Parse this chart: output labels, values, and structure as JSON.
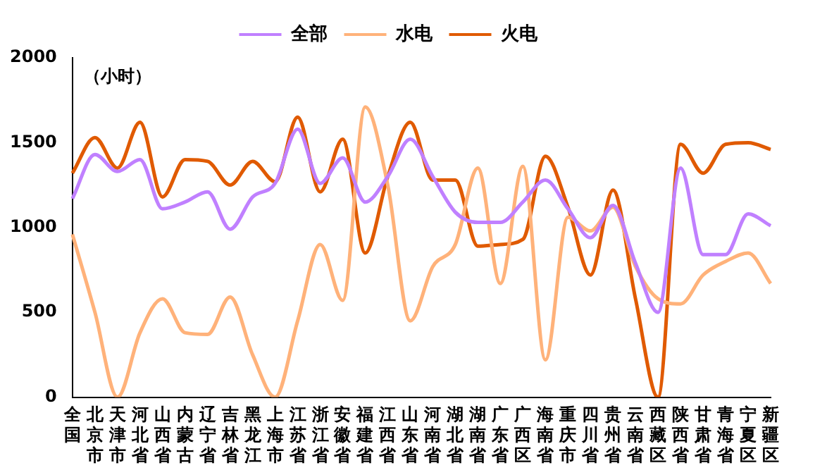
{
  "chart_data": {
    "type": "line",
    "ylabel": "（小时）",
    "categories": [
      "全国",
      "北京市",
      "天津市",
      "河北省",
      "山西省",
      "内蒙古",
      "辽宁省",
      "吉林省",
      "黑龙江",
      "上海市",
      "江苏省",
      "浙江省",
      "安徽省",
      "福建省",
      "江西省",
      "山东省",
      "河南省",
      "湖北省",
      "湖南省",
      "广东省",
      "广西区",
      "海南省",
      "重庆市",
      "四川省",
      "贵州省",
      "云南省",
      "西藏区",
      "陕西省",
      "甘肃省",
      "青海省",
      "宁夏区",
      "新疆区"
    ],
    "series": [
      {
        "name": "全部",
        "color": "#c080ff",
        "values": [
          1170,
          1430,
          1330,
          1400,
          1110,
          1150,
          1210,
          990,
          1180,
          1260,
          1580,
          1260,
          1410,
          1150,
          1300,
          1520,
          1300,
          1090,
          1030,
          1030,
          1150,
          1280,
          1110,
          940,
          1130,
          790,
          500,
          1350,
          840,
          840,
          1080,
          1010
        ]
      },
      {
        "name": "水电",
        "color": "#ffb27a",
        "values": [
          960,
          500,
          0,
          380,
          580,
          380,
          370,
          590,
          250,
          0,
          450,
          900,
          570,
          1710,
          1250,
          450,
          770,
          900,
          1350,
          670,
          1360,
          220,
          1060,
          980,
          1120,
          770,
          580,
          550,
          720,
          800,
          850,
          670
        ]
      },
      {
        "name": "火电",
        "color": "#e05a00",
        "values": [
          1320,
          1530,
          1350,
          1620,
          1180,
          1400,
          1390,
          1250,
          1390,
          1270,
          1650,
          1210,
          1520,
          850,
          1300,
          1620,
          1280,
          1280,
          890,
          900,
          930,
          1420,
          1120,
          720,
          1220,
          580,
          0,
          1490,
          1320,
          1490,
          1500,
          1460
        ]
      }
    ],
    "ylim": [
      0,
      2000
    ],
    "yticks": [
      0,
      500,
      1000,
      1500,
      2000
    ],
    "grid": false,
    "legend": "top",
    "marker": "none",
    "line_style": "solid"
  }
}
